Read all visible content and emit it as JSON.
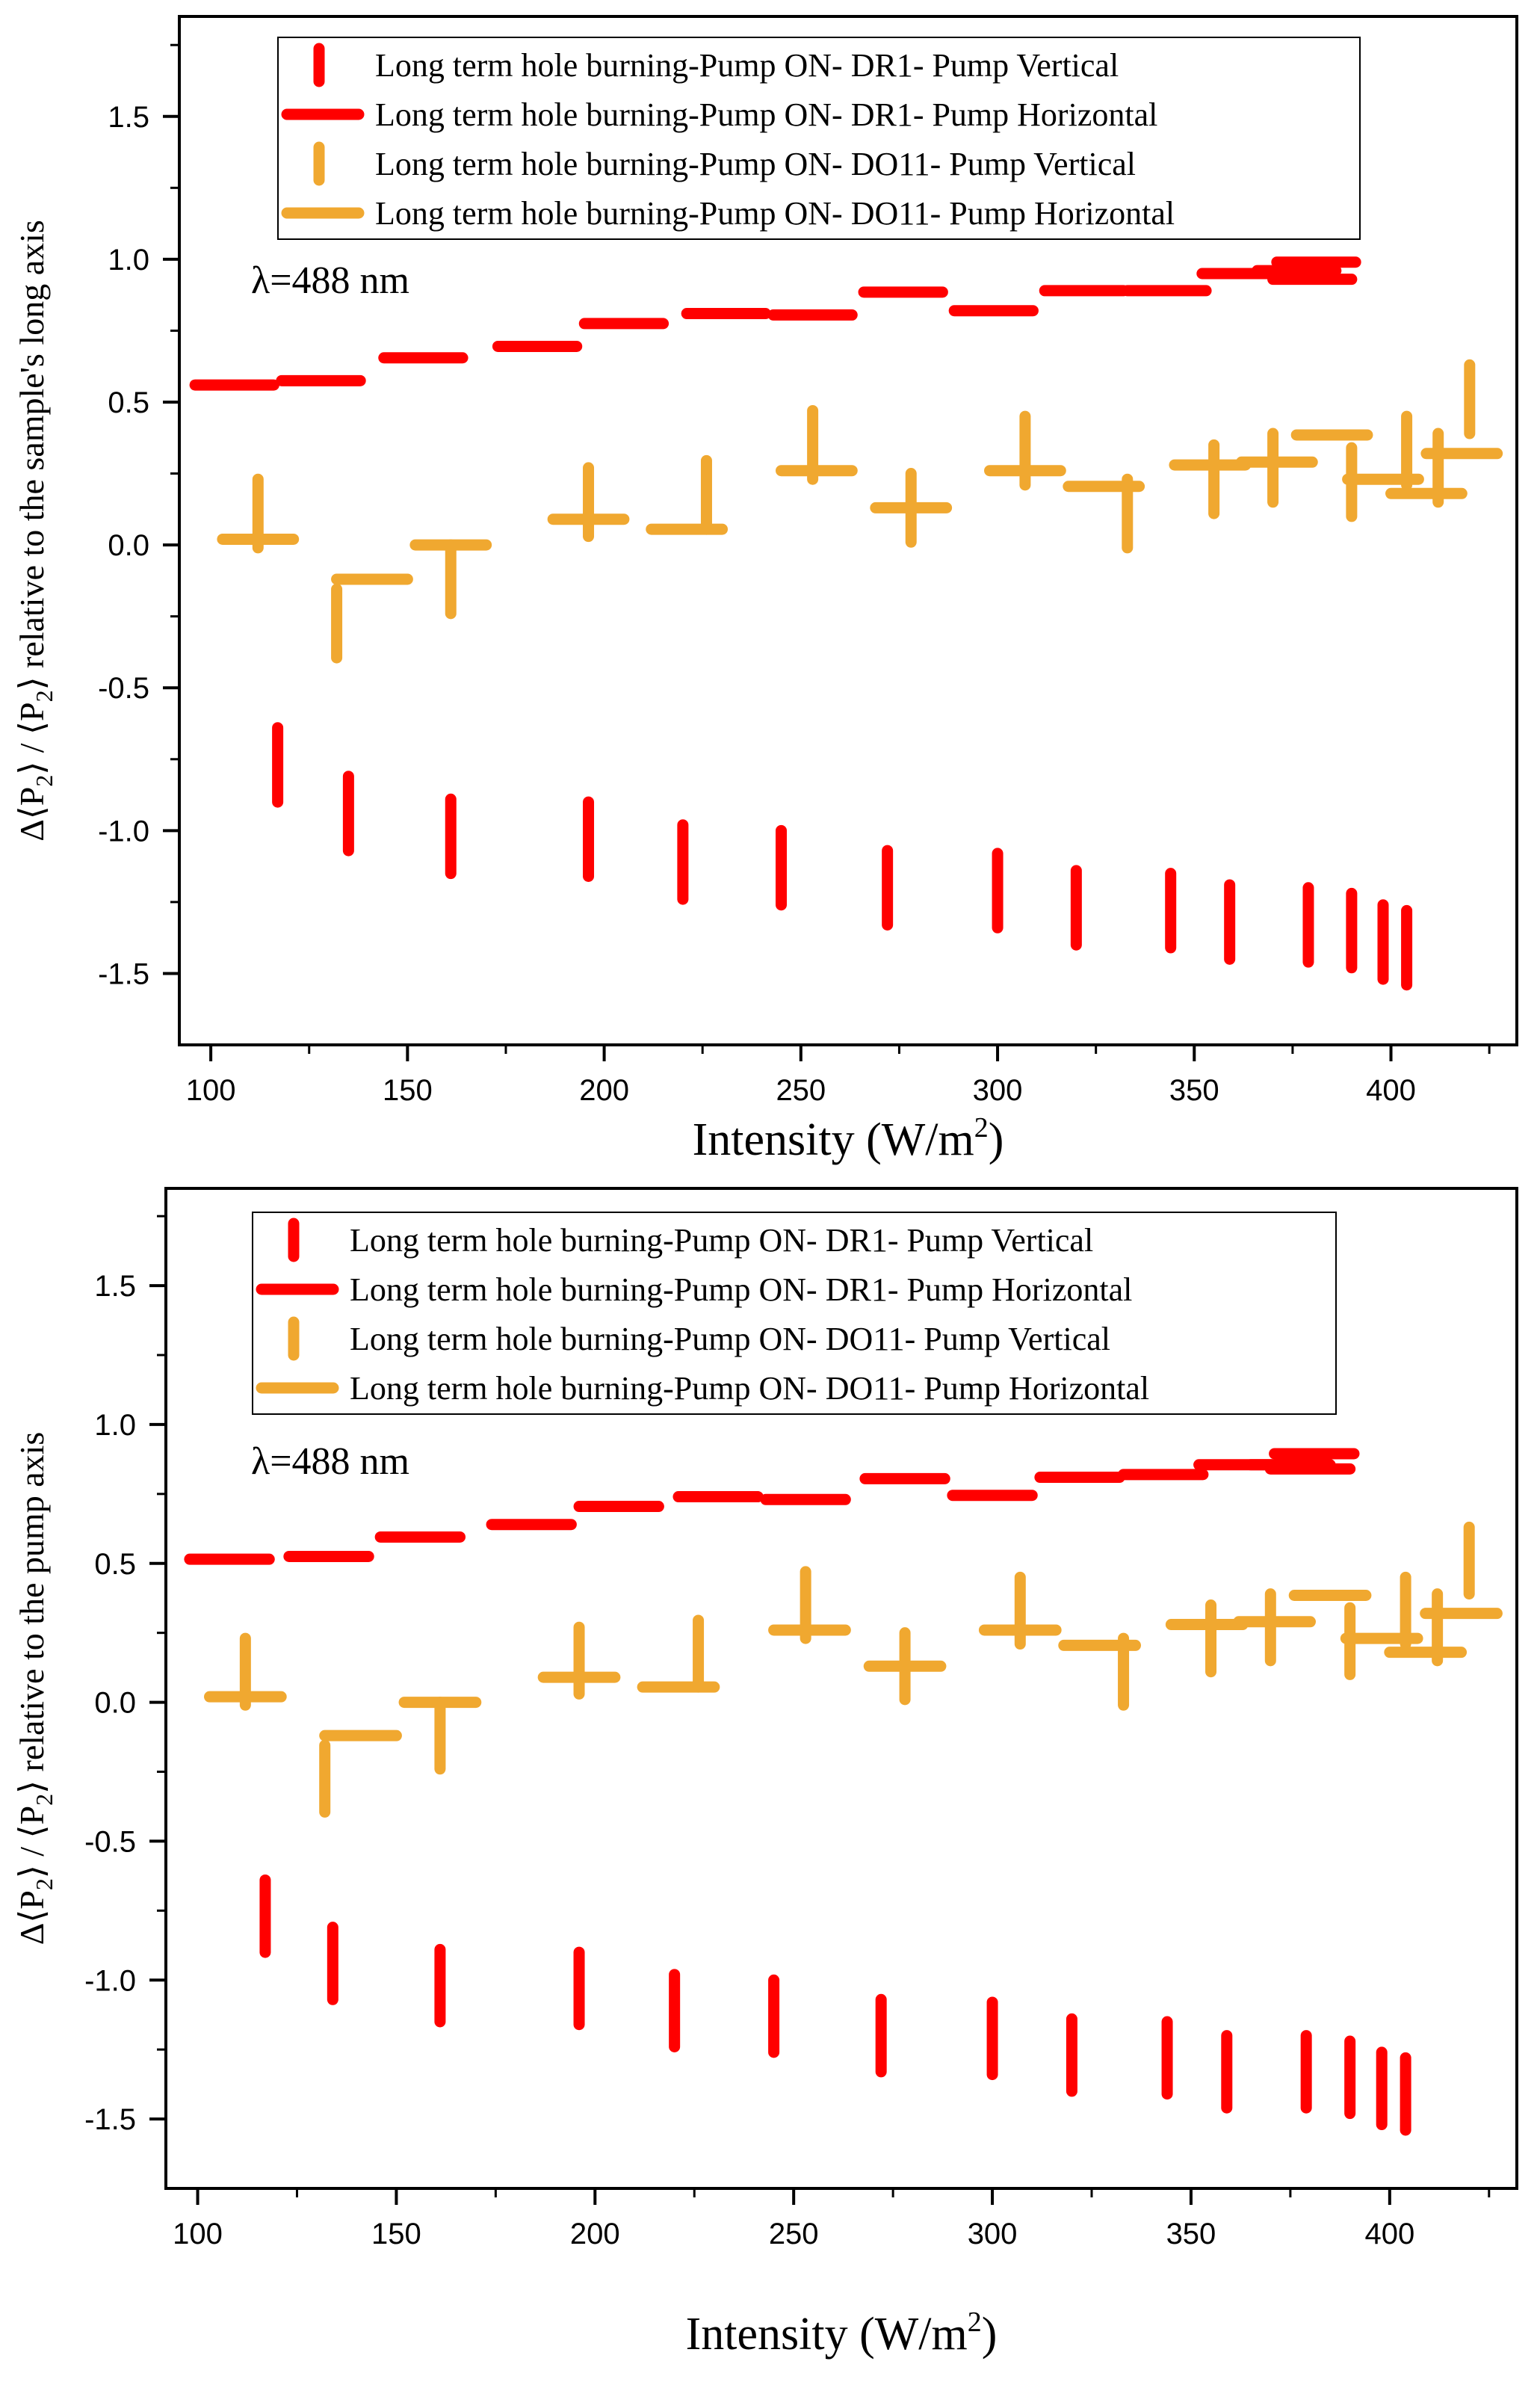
{
  "colors": {
    "dr1": "#FF0000",
    "do11": "#F0A830",
    "axis": "#000000"
  },
  "chart_data": [
    {
      "type": "bar",
      "title": "",
      "xlabel": "Intensity (W/m²)",
      "xlabel_base": "Intensity (W/m",
      "xlabel_sup": "2",
      "xlabel_close": ")",
      "ylabel": "Δ⟨P2⟩ / ⟨P2⟩ relative to the sample's long axis",
      "ylabel_parts": [
        "Δ⟨P",
        "2",
        "⟩ / ⟨P",
        "2",
        "⟩ relative to the sample's long axis"
      ],
      "annotation": "λ=488 nm",
      "xlim": [
        92,
        432
      ],
      "ylim": [
        -1.75,
        1.85
      ],
      "xticks": [
        100,
        150,
        200,
        250,
        300,
        350,
        400
      ],
      "xtick_labels": [
        "100",
        "150",
        "200",
        "250",
        "300",
        "350",
        "400"
      ],
      "yticks": [
        -1.5,
        -1.0,
        -0.5,
        0.0,
        0.5,
        1.0,
        1.5
      ],
      "ytick_labels": [
        "-1.5",
        "-1.0",
        "-0.5",
        "0.0",
        "0.5",
        "1.0",
        "1.5"
      ],
      "legend_position": "top",
      "legend": [
        "Long term hole burning-Pump ON- DR1- Pump Vertical",
        "Long term hole burning-Pump ON- DR1- Pump Horizontal",
        "Long term hole burning-Pump ON- DO11- Pump Vertical",
        "Long term hole burning-Pump ON- DO11- Pump Horizontal"
      ],
      "series": [
        {
          "name": "Long term hole burning-Pump ON- DR1- Pump Vertical",
          "orientation": "vertical",
          "color_key": "dr1",
          "points": [
            [
              117,
              -0.77
            ],
            [
              135,
              -0.94
            ],
            [
              161,
              -1.02
            ],
            [
              196,
              -1.03
            ],
            [
              220,
              -1.11
            ],
            [
              245,
              -1.13
            ],
            [
              272,
              -1.2
            ],
            [
              300,
              -1.21
            ],
            [
              320,
              -1.27
            ],
            [
              344,
              -1.28
            ],
            [
              359,
              -1.32
            ],
            [
              379,
              -1.33
            ],
            [
              390,
              -1.35
            ],
            [
              398,
              -1.39
            ],
            [
              404,
              -1.41
            ]
          ],
          "half": 0.13
        },
        {
          "name": "Long term hole burning-Pump ON- DR1- Pump Horizontal",
          "orientation": "horizontal",
          "color_key": "dr1",
          "points": [
            [
              106,
              0.56
            ],
            [
              128,
              0.575
            ],
            [
              154,
              0.655
            ],
            [
              183,
              0.695
            ],
            [
              205,
              0.775
            ],
            [
              231,
              0.81
            ],
            [
              253,
              0.805
            ],
            [
              276,
              0.885
            ],
            [
              299,
              0.82
            ],
            [
              322,
              0.89
            ],
            [
              343,
              0.89
            ],
            [
              362,
              0.95
            ],
            [
              376,
              0.96
            ],
            [
              380,
              0.93
            ],
            [
              381,
              0.99
            ]
          ],
          "half": 10.0
        },
        {
          "name": "Long term hole burning-Pump ON- DO11- Pump Vertical",
          "orientation": "vertical",
          "color_key": "do11",
          "points": [
            [
              112,
              0.11
            ],
            [
              132,
              -0.275
            ],
            [
              161,
              -0.12
            ],
            [
              196,
              0.15
            ],
            [
              226,
              0.175
            ],
            [
              253,
              0.35
            ],
            [
              278,
              0.13
            ],
            [
              307,
              0.33
            ],
            [
              333,
              0.11
            ],
            [
              355,
              0.23
            ],
            [
              370,
              0.27
            ],
            [
              390,
              0.22
            ],
            [
              404,
              0.33
            ],
            [
              412,
              0.27
            ],
            [
              420,
              0.51
            ]
          ],
          "half": 0.12
        },
        {
          "name": "Long term hole burning-Pump ON- DO11- Pump Horizontal",
          "orientation": "horizontal",
          "color_key": "do11",
          "points": [
            [
              112,
              0.02
            ],
            [
              141,
              -0.12
            ],
            [
              161,
              0.0
            ],
            [
              196,
              0.09
            ],
            [
              221,
              0.055
            ],
            [
              254,
              0.26
            ],
            [
              278,
              0.13
            ],
            [
              307,
              0.26
            ],
            [
              327,
              0.205
            ],
            [
              354,
              0.28
            ],
            [
              371,
              0.29
            ],
            [
              385,
              0.385
            ],
            [
              398,
              0.23
            ],
            [
              409,
              0.18
            ],
            [
              418,
              0.32
            ]
          ],
          "half": 9.0
        }
      ]
    },
    {
      "type": "bar",
      "title": "",
      "xlabel": "Intensity (W/m²)",
      "xlabel_base": "Intensity (W/m",
      "xlabel_sup": "2",
      "xlabel_close": ")",
      "ylabel": "Δ⟨P2⟩ / ⟨P2⟩ relative to the pump axis",
      "ylabel_parts": [
        "Δ⟨P",
        "2",
        "⟩ / ⟨P",
        "2",
        "⟩ relative to the pump axis"
      ],
      "annotation": "λ=488 nm",
      "xlim": [
        92,
        432
      ],
      "ylim": [
        -1.75,
        1.85
      ],
      "xticks": [
        100,
        150,
        200,
        250,
        300,
        350,
        400
      ],
      "xtick_labels": [
        "100",
        "150",
        "200",
        "250",
        "300",
        "350",
        "400"
      ],
      "yticks": [
        -1.5,
        -1.0,
        -0.5,
        0.0,
        0.5,
        1.0,
        1.5
      ],
      "ytick_labels": [
        "-1.5",
        "-1.0",
        "-0.5",
        "0.0",
        "0.5",
        "1.0",
        "1.5"
      ],
      "legend_position": "top",
      "legend": [
        "Long term hole burning-Pump ON- DR1- Pump Vertical",
        "Long term hole burning-Pump ON- DR1- Pump Horizontal",
        "Long term hole burning-Pump ON- DO11- Pump Vertical",
        "Long term hole burning-Pump ON- DO11- Pump Horizontal"
      ],
      "series": [
        {
          "name": "Long term hole burning-Pump ON- DR1- Pump Vertical",
          "orientation": "vertical",
          "color_key": "dr1",
          "points": [
            [
              117,
              -0.77
            ],
            [
              134,
              -0.94
            ],
            [
              161,
              -1.02
            ],
            [
              196,
              -1.03
            ],
            [
              220,
              -1.11
            ],
            [
              245,
              -1.13
            ],
            [
              272,
              -1.2
            ],
            [
              300,
              -1.21
            ],
            [
              320,
              -1.27
            ],
            [
              344,
              -1.28
            ],
            [
              359,
              -1.33
            ],
            [
              379,
              -1.33
            ],
            [
              390,
              -1.35
            ],
            [
              398,
              -1.39
            ],
            [
              404,
              -1.41
            ]
          ],
          "half": 0.13
        },
        {
          "name": "Long term hole burning-Pump ON- DR1- Pump Horizontal",
          "orientation": "horizontal",
          "color_key": "dr1",
          "points": [
            [
              108,
              0.515
            ],
            [
              133,
              0.525
            ],
            [
              156,
              0.595
            ],
            [
              184,
              0.64
            ],
            [
              206,
              0.705
            ],
            [
              231,
              0.74
            ],
            [
              253,
              0.73
            ],
            [
              278,
              0.805
            ],
            [
              300,
              0.745
            ],
            [
              322,
              0.81
            ],
            [
              343,
              0.82
            ],
            [
              362,
              0.855
            ],
            [
              375,
              0.855
            ],
            [
              380,
              0.84
            ],
            [
              381,
              0.895
            ]
          ],
          "half": 10.0
        },
        {
          "name": "Long term hole burning-Pump ON- DO11- Pump Vertical",
          "orientation": "vertical",
          "color_key": "do11",
          "points": [
            [
              112,
              0.11
            ],
            [
              132,
              -0.275
            ],
            [
              161,
              -0.12
            ],
            [
              196,
              0.15
            ],
            [
              226,
              0.175
            ],
            [
              253,
              0.35
            ],
            [
              278,
              0.13
            ],
            [
              307,
              0.33
            ],
            [
              333,
              0.11
            ],
            [
              355,
              0.23
            ],
            [
              370,
              0.27
            ],
            [
              390,
              0.22
            ],
            [
              404,
              0.33
            ],
            [
              412,
              0.27
            ],
            [
              420,
              0.51
            ]
          ],
          "half": 0.12
        },
        {
          "name": "Long term hole burning-Pump ON- DO11- Pump Horizontal",
          "orientation": "horizontal",
          "color_key": "do11",
          "points": [
            [
              112,
              0.02
            ],
            [
              141,
              -0.12
            ],
            [
              161,
              0.0
            ],
            [
              196,
              0.09
            ],
            [
              221,
              0.055
            ],
            [
              254,
              0.26
            ],
            [
              278,
              0.13
            ],
            [
              307,
              0.26
            ],
            [
              327,
              0.205
            ],
            [
              354,
              0.28
            ],
            [
              371,
              0.29
            ],
            [
              385,
              0.385
            ],
            [
              398,
              0.23
            ],
            [
              409,
              0.18
            ],
            [
              418,
              0.32
            ]
          ],
          "half": 9.0
        }
      ]
    }
  ]
}
